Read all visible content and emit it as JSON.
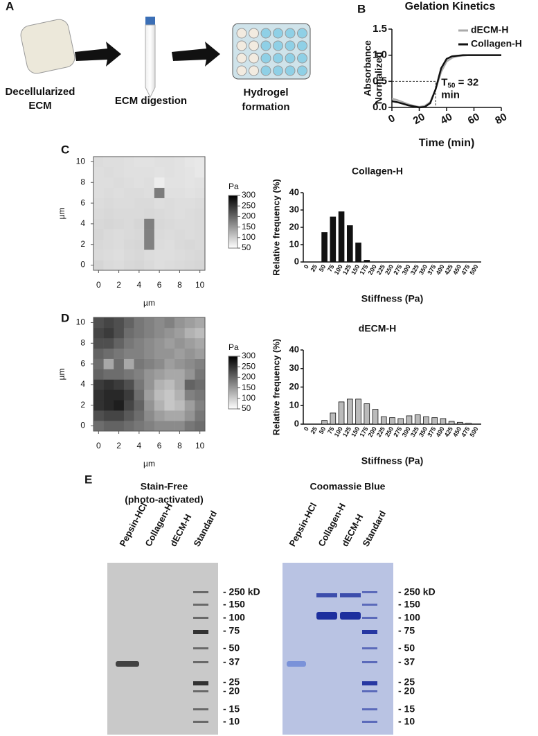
{
  "panel_labels": [
    "A",
    "B",
    "C",
    "D",
    "E"
  ],
  "schematic": {
    "steps": [
      {
        "label": [
          "Decellularized",
          "ECM"
        ]
      },
      {
        "label": [
          "ECM digestion"
        ]
      },
      {
        "label": [
          "Hydrogel",
          "formation"
        ]
      }
    ]
  },
  "chart_data": [
    {
      "type": "line",
      "title": "Gelation Kinetics",
      "ylabel": [
        "Absorbance",
        "Normalized"
      ],
      "xlabel": "Time (min)",
      "x": [
        0,
        4,
        8,
        12,
        16,
        20,
        24,
        28,
        32,
        36,
        40,
        44,
        48,
        52,
        56,
        60,
        64,
        68,
        72,
        76,
        80
      ],
      "series": [
        {
          "name": "dECM-H",
          "color": "#aaaaaa",
          "values": [
            0.17,
            0.14,
            0.1,
            0.06,
            0.03,
            0.01,
            0.03,
            0.1,
            0.35,
            0.68,
            0.88,
            0.95,
            0.98,
            0.99,
            1.0,
            1.0,
            1.0,
            1.0,
            1.0,
            1.0,
            1.0
          ]
        },
        {
          "name": "Collagen-H",
          "color": "#111111",
          "values": [
            0.12,
            0.1,
            0.07,
            0.04,
            0.02,
            0.0,
            0.01,
            0.08,
            0.35,
            0.75,
            0.93,
            0.98,
            0.99,
            1.0,
            1.0,
            1.0,
            1.0,
            1.0,
            1.0,
            1.0,
            1.0
          ]
        }
      ],
      "xlim": [
        0,
        80
      ],
      "xticks": [
        0,
        20,
        40,
        60,
        80
      ],
      "ylim": [
        0,
        1.5
      ],
      "yticks": [
        {
          "value": 0,
          "label": "0.0"
        },
        {
          "value": 0.5,
          "label": "0.5"
        },
        {
          "value": 1,
          "label": "1.0"
        },
        {
          "value": 1.5,
          "label": "1.5"
        }
      ],
      "threshold": {
        "x": 32,
        "y": 0.5
      },
      "annotation": {
        "text": "T",
        "sub": "50",
        "rest": " = 32",
        "line2": "min"
      },
      "legend": "top-right"
    },
    {
      "type": "heatmap",
      "xlabel": "µm",
      "ylabel": "µm",
      "x": [
        0,
        1,
        2,
        3,
        4,
        5,
        6,
        7,
        8,
        9,
        10
      ],
      "y": [
        0,
        1,
        2,
        3,
        4,
        5,
        6,
        7,
        8,
        9,
        10
      ],
      "z": [
        [
          85,
          80,
          78,
          82,
          84,
          80,
          76,
          78,
          80,
          82,
          84
        ],
        [
          80,
          78,
          76,
          80,
          82,
          78,
          76,
          76,
          78,
          80,
          82
        ],
        [
          82,
          80,
          78,
          82,
          84,
          170,
          78,
          76,
          80,
          82,
          80
        ],
        [
          84,
          80,
          78,
          80,
          82,
          170,
          80,
          78,
          80,
          78,
          80
        ],
        [
          82,
          84,
          82,
          80,
          84,
          172,
          82,
          80,
          78,
          78,
          80
        ],
        [
          80,
          82,
          80,
          80,
          80,
          82,
          80,
          78,
          76,
          78,
          80
        ],
        [
          78,
          80,
          78,
          78,
          80,
          80,
          76,
          78,
          76,
          76,
          78
        ],
        [
          76,
          78,
          76,
          78,
          78,
          76,
          175,
          74,
          74,
          72,
          74
        ],
        [
          76,
          76,
          78,
          76,
          74,
          76,
          60,
          72,
          72,
          70,
          72
        ],
        [
          76,
          78,
          76,
          74,
          74,
          74,
          72,
          74,
          72,
          70,
          66
        ],
        [
          78,
          76,
          76,
          74,
          72,
          72,
          74,
          74,
          72,
          68,
          66
        ]
      ],
      "xlim": [
        -0.5,
        10.5
      ],
      "ylim": [
        -0.5,
        10.5
      ],
      "xticks": [
        0,
        2,
        4,
        6,
        8,
        10
      ],
      "yticks": [
        0,
        2,
        4,
        6,
        8,
        10
      ],
      "colorbar": {
        "label": "Pa",
        "lim": [
          50,
          300
        ],
        "ticks": [
          50,
          100,
          150,
          200,
          250,
          300
        ]
      }
    },
    {
      "type": "bar",
      "title": "Collagen-H",
      "ylabel": "Relative frequency (%)",
      "xlabel": "Stiffness (Pa)",
      "color": "#111111",
      "categories": [
        "0",
        "25",
        "50",
        "75",
        "100",
        "125",
        "150",
        "175",
        "200",
        "225",
        "250",
        "275",
        "300",
        "325",
        "350",
        "375",
        "400",
        "425",
        "450",
        "475",
        "500"
      ],
      "values": [
        0,
        0,
        17,
        26,
        29,
        21,
        11,
        1,
        0,
        0,
        0,
        0,
        0,
        0,
        0,
        0,
        0,
        0,
        0,
        0,
        0
      ],
      "ylim": [
        0,
        40
      ],
      "yticks": [
        0,
        10,
        20,
        30,
        40
      ]
    },
    {
      "type": "heatmap",
      "xlabel": "µm",
      "ylabel": "µm",
      "x": [
        0,
        1,
        2,
        3,
        4,
        5,
        6,
        7,
        8,
        9,
        10
      ],
      "y": [
        0,
        1,
        2,
        3,
        4,
        5,
        6,
        7,
        8,
        9,
        10
      ],
      "z": [
        [
          190,
          200,
          200,
          190,
          180,
          170,
          160,
          160,
          160,
          180,
          190
        ],
        [
          220,
          230,
          230,
          210,
          190,
          160,
          140,
          130,
          130,
          150,
          180
        ],
        [
          250,
          260,
          270,
          230,
          200,
          150,
          120,
          100,
          110,
          140,
          170
        ],
        [
          250,
          260,
          260,
          240,
          190,
          140,
          110,
          100,
          120,
          170,
          180
        ],
        [
          240,
          250,
          240,
          220,
          180,
          150,
          120,
          110,
          130,
          200,
          190
        ],
        [
          200,
          190,
          190,
          180,
          170,
          150,
          140,
          130,
          130,
          150,
          180
        ],
        [
          190,
          130,
          190,
          130,
          180,
          170,
          160,
          140,
          150,
          160,
          170
        ],
        [
          200,
          190,
          180,
          170,
          170,
          160,
          150,
          150,
          140,
          150,
          140
        ],
        [
          220,
          220,
          200,
          180,
          170,
          160,
          150,
          140,
          150,
          140,
          130
        ],
        [
          230,
          240,
          220,
          190,
          180,
          170,
          160,
          150,
          140,
          120,
          110
        ],
        [
          220,
          230,
          220,
          200,
          180,
          170,
          160,
          170,
          150,
          140,
          130
        ]
      ],
      "xlim": [
        -0.5,
        10.5
      ],
      "ylim": [
        -0.5,
        10.5
      ],
      "xticks": [
        0,
        2,
        4,
        6,
        8,
        10
      ],
      "yticks": [
        0,
        2,
        4,
        6,
        8,
        10
      ],
      "colorbar": {
        "label": "Pa",
        "lim": [
          50,
          300
        ],
        "ticks": [
          50,
          100,
          150,
          200,
          250,
          300
        ]
      }
    },
    {
      "type": "bar",
      "title": "dECM-H",
      "ylabel": "Relative frequency (%)",
      "xlabel": "Stiffness (Pa)",
      "color": "#bbbbbb",
      "categories": [
        "0",
        "25",
        "50",
        "75",
        "100",
        "125",
        "150",
        "175",
        "200",
        "225",
        "250",
        "275",
        "300",
        "325",
        "350",
        "375",
        "400",
        "425",
        "450",
        "475",
        "500"
      ],
      "values": [
        0,
        0,
        2,
        6,
        12,
        13.5,
        13.5,
        11,
        8,
        4,
        3.5,
        3,
        4.5,
        5,
        4,
        3.5,
        3,
        1.5,
        1,
        0.5,
        0
      ],
      "ylim": [
        0,
        40
      ],
      "yticks": [
        0,
        10,
        20,
        30,
        40
      ]
    }
  ],
  "gels": [
    {
      "title": [
        "Stain-Free",
        "(photo-activated)"
      ],
      "lanes": [
        "Pepsin-HCl",
        "Collagen-H",
        "dECM-H",
        "Standard"
      ],
      "markers": [
        "- 250 kD",
        "- 150",
        "- 100",
        "- 75",
        "- 50",
        "- 37",
        "- 25",
        "- 20",
        "- 15",
        "- 10"
      ]
    },
    {
      "title": [
        "Coomassie Blue"
      ],
      "lanes": [
        "Pepsin-HCl",
        "Collagen-H",
        "dECM-H",
        "Standard"
      ],
      "markers": [
        "- 250 kD",
        "- 150",
        "- 100",
        "- 75",
        "- 50",
        "- 37",
        "- 25",
        "- 20",
        "- 15",
        "- 10"
      ]
    }
  ]
}
